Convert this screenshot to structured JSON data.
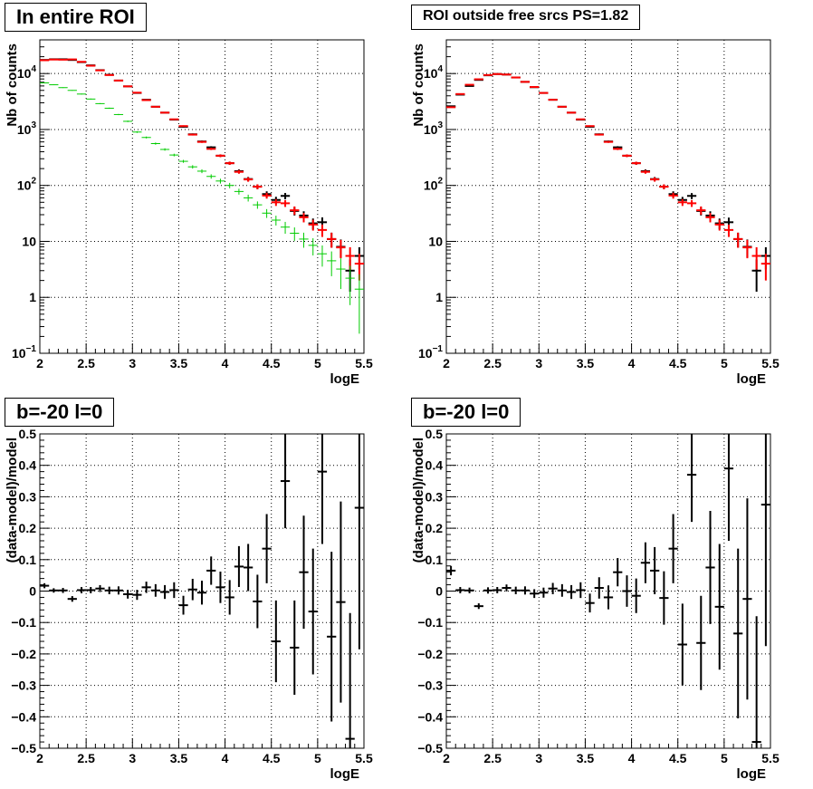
{
  "panels": [
    {
      "title": "In entire ROI",
      "title_style": "big"
    },
    {
      "title": "ROI outside free srcs PS=1.82",
      "title_style": "small"
    },
    {
      "title": "b=-20 l=0",
      "title_style": "big"
    },
    {
      "title": "b=-20 l=0",
      "title_style": "big"
    }
  ],
  "chart_data": [
    {
      "type": "scatter",
      "xlabel": "logE",
      "ylabel": "Nb of counts",
      "xlim": [
        2,
        5.5
      ],
      "ylim": [
        0.1,
        40000
      ],
      "yscale": "log",
      "grid": true,
      "x_ticks": [
        "2",
        "2.5",
        "3",
        "3.5",
        "4",
        "4.5",
        "5",
        "5.5"
      ],
      "y_ticks": [
        "10^-1",
        "1",
        "10",
        "10^2",
        "10^3",
        "10^4"
      ],
      "colors": {
        "data": "#000000",
        "model": "#ff0000",
        "component_blue": "#0000ff",
        "component_green": "#00cc00"
      },
      "series": [
        {
          "role": "data",
          "color": "#000000",
          "x": [
            2.05,
            2.15,
            2.25,
            2.35,
            2.45,
            2.55,
            2.65,
            2.75,
            2.85,
            2.95,
            3.05,
            3.15,
            3.25,
            3.35,
            3.45,
            3.55,
            3.65,
            3.75,
            3.85,
            3.95,
            4.05,
            4.15,
            4.25,
            4.35,
            4.45,
            4.55,
            4.65,
            4.75,
            4.85,
            4.95,
            5.05,
            5.15,
            5.25,
            5.35,
            5.45
          ],
          "y": [
            17500,
            18000,
            18000,
            17500,
            16000,
            14000,
            11500,
            9500,
            7500,
            5900,
            4500,
            3400,
            2550,
            2000,
            1500,
            1120,
            820,
            610,
            480,
            340,
            250,
            180,
            130,
            95,
            70,
            55,
            65,
            35,
            29,
            21,
            22,
            11,
            8,
            3,
            5.5
          ],
          "err_rel": [
            0.01,
            0.01,
            0.01,
            0.01,
            0.01,
            0.01,
            0.01,
            0.01,
            0.01,
            0.01,
            0.015,
            0.015,
            0.02,
            0.02,
            0.025,
            0.03,
            0.035,
            0.04,
            0.045,
            0.055,
            0.065,
            0.075,
            0.09,
            0.1,
            0.12,
            0.14,
            0.13,
            0.17,
            0.19,
            0.22,
            0.22,
            0.3,
            0.35,
            0.58,
            0.43
          ]
        },
        {
          "role": "model",
          "color": "#ff0000",
          "x": [
            2.05,
            2.15,
            2.25,
            2.35,
            2.45,
            2.55,
            2.65,
            2.75,
            2.85,
            2.95,
            3.05,
            3.15,
            3.25,
            3.35,
            3.45,
            3.55,
            3.65,
            3.75,
            3.85,
            3.95,
            4.05,
            4.15,
            4.25,
            4.35,
            4.45,
            4.55,
            4.65,
            4.75,
            4.85,
            4.95,
            5.05,
            5.15,
            5.25,
            5.35,
            5.45
          ],
          "y": [
            17300,
            17800,
            17700,
            17900,
            16200,
            13800,
            11400,
            9400,
            7500,
            5900,
            4550,
            3350,
            2550,
            2000,
            1520,
            1150,
            810,
            600,
            450,
            340,
            250,
            175,
            128,
            95,
            66,
            50,
            48,
            36,
            27,
            20,
            16,
            11,
            7.8,
            5.5,
            4
          ],
          "err_rel": [
            0.01,
            0.01,
            0.01,
            0.01,
            0.01,
            0.01,
            0.01,
            0.01,
            0.01,
            0.01,
            0.015,
            0.015,
            0.02,
            0.02,
            0.025,
            0.03,
            0.035,
            0.04,
            0.045,
            0.055,
            0.065,
            0.075,
            0.09,
            0.1,
            0.12,
            0.14,
            0.14,
            0.17,
            0.19,
            0.22,
            0.25,
            0.3,
            0.36,
            0.43,
            0.5
          ]
        },
        {
          "role": "component_green",
          "color": "#00cc00",
          "x": [
            2.05,
            2.15,
            2.25,
            2.35,
            2.45,
            2.55,
            2.65,
            2.75,
            2.85,
            2.95,
            3.05,
            3.15,
            3.25,
            3.35,
            3.45,
            3.55,
            3.65,
            3.75,
            3.85,
            3.95,
            4.05,
            4.15,
            4.25,
            4.35,
            4.45,
            4.55,
            4.65,
            4.75,
            4.85,
            4.95,
            5.05,
            5.15,
            5.25,
            5.35,
            5.45
          ],
          "y": [
            6800,
            6300,
            5600,
            5000,
            4300,
            3500,
            2900,
            2400,
            1850,
            1400,
            900,
            720,
            560,
            440,
            350,
            270,
            215,
            180,
            145,
            120,
            100,
            78,
            60,
            45,
            32,
            24,
            18,
            14,
            11,
            8.5,
            6,
            4.5,
            3.2,
            2.2,
            1.4
          ],
          "err_rel": [
            0.015,
            0.015,
            0.015,
            0.015,
            0.02,
            0.02,
            0.02,
            0.025,
            0.025,
            0.03,
            0.035,
            0.04,
            0.045,
            0.05,
            0.055,
            0.06,
            0.07,
            0.08,
            0.09,
            0.1,
            0.11,
            0.12,
            0.14,
            0.15,
            0.18,
            0.2,
            0.24,
            0.27,
            0.3,
            0.34,
            0.41,
            0.47,
            0.56,
            0.67,
            0.84
          ]
        }
      ]
    },
    {
      "type": "scatter",
      "xlabel": "logE",
      "ylabel": "Nb of counts",
      "xlim": [
        2,
        5.5
      ],
      "ylim": [
        0.1,
        40000
      ],
      "yscale": "log",
      "grid": true,
      "x_ticks": [
        "2",
        "2.5",
        "3",
        "3.5",
        "4",
        "4.5",
        "5",
        "5.5"
      ],
      "y_ticks": [
        "10^-1",
        "1",
        "10",
        "10^2",
        "10^3",
        "10^4"
      ],
      "series": [
        {
          "role": "data",
          "color": "#000000",
          "x": [
            2.05,
            2.15,
            2.25,
            2.35,
            2.45,
            2.55,
            2.65,
            2.75,
            2.85,
            2.95,
            3.05,
            3.15,
            3.25,
            3.35,
            3.45,
            3.55,
            3.65,
            3.75,
            3.85,
            3.95,
            4.05,
            4.15,
            4.25,
            4.35,
            4.45,
            4.55,
            4.65,
            4.75,
            4.85,
            4.95,
            5.05,
            5.15,
            5.25,
            5.35,
            5.45
          ],
          "y": [
            2600,
            4200,
            6000,
            7700,
            9300,
            9800,
            9600,
            8500,
            7100,
            5700,
            4500,
            3400,
            2550,
            2000,
            1500,
            1120,
            820,
            610,
            480,
            340,
            250,
            180,
            130,
            95,
            70,
            55,
            65,
            35,
            29,
            21,
            22,
            11,
            8,
            3,
            5.5
          ],
          "err_rel": [
            0.02,
            0.016,
            0.013,
            0.012,
            0.011,
            0.01,
            0.011,
            0.011,
            0.012,
            0.014,
            0.015,
            0.017,
            0.02,
            0.022,
            0.026,
            0.03,
            0.035,
            0.04,
            0.046,
            0.054,
            0.063,
            0.075,
            0.088,
            0.1,
            0.12,
            0.135,
            0.124,
            0.17,
            0.19,
            0.22,
            0.21,
            0.3,
            0.35,
            0.58,
            0.43
          ]
        },
        {
          "role": "model",
          "color": "#ff0000",
          "x": [
            2.05,
            2.15,
            2.25,
            2.35,
            2.45,
            2.55,
            2.65,
            2.75,
            2.85,
            2.95,
            3.05,
            3.15,
            3.25,
            3.35,
            3.45,
            3.55,
            3.65,
            3.75,
            3.85,
            3.95,
            4.05,
            4.15,
            4.25,
            4.35,
            4.45,
            4.55,
            4.65,
            4.75,
            4.85,
            4.95,
            5.05,
            5.15,
            5.25,
            5.35,
            5.45
          ],
          "y": [
            2500,
            4300,
            6300,
            7900,
            9400,
            9800,
            9600,
            8500,
            7100,
            5750,
            4500,
            3400,
            2550,
            2000,
            1520,
            1150,
            810,
            600,
            450,
            340,
            250,
            175,
            128,
            95,
            66,
            50,
            48,
            36,
            27,
            20,
            16,
            11,
            7.8,
            5.5,
            4
          ],
          "err_rel": [
            0.02,
            0.016,
            0.013,
            0.012,
            0.011,
            0.01,
            0.011,
            0.011,
            0.012,
            0.014,
            0.015,
            0.017,
            0.02,
            0.022,
            0.026,
            0.03,
            0.035,
            0.04,
            0.046,
            0.054,
            0.063,
            0.075,
            0.088,
            0.1,
            0.12,
            0.14,
            0.14,
            0.17,
            0.19,
            0.22,
            0.25,
            0.3,
            0.36,
            0.43,
            0.5
          ]
        }
      ]
    },
    {
      "type": "scatter",
      "xlabel": "logE",
      "ylabel": "(data-model)/model",
      "xlim": [
        2,
        5.5
      ],
      "ylim": [
        -0.5,
        0.5
      ],
      "grid": true,
      "x_ticks": [
        "2",
        "2.5",
        "3",
        "3.5",
        "4",
        "4.5",
        "5",
        "5.5"
      ],
      "y_ticks": [
        "-0.5",
        "-0.4",
        "-0.3",
        "-0.2",
        "-0.1",
        "0",
        "0.1",
        "0.2",
        "0.3",
        "0.4",
        "0.5"
      ],
      "series": [
        {
          "role": "residual",
          "color": "#000000",
          "x": [
            2.05,
            2.15,
            2.25,
            2.35,
            2.45,
            2.55,
            2.65,
            2.75,
            2.85,
            2.95,
            3.05,
            3.15,
            3.25,
            3.35,
            3.45,
            3.55,
            3.65,
            3.75,
            3.85,
            3.95,
            4.05,
            4.15,
            4.25,
            4.35,
            4.45,
            4.55,
            4.65,
            4.75,
            4.85,
            4.95,
            5.05,
            5.15,
            5.25,
            5.35,
            5.45
          ],
          "y": [
            0.017,
            0.002,
            0.002,
            -0.025,
            0.003,
            0.003,
            0.008,
            0.002,
            0.002,
            -0.01,
            -0.012,
            0.012,
            0.002,
            -0.003,
            0.003,
            -0.045,
            0.005,
            -0.005,
            0.065,
            0.012,
            -0.02,
            0.078,
            0.075,
            -0.033,
            0.135,
            -0.16,
            0.35,
            -0.18,
            0.06,
            -0.065,
            0.38,
            -0.145,
            -0.035,
            -0.47,
            0.265
          ],
          "err": [
            0.008,
            0.007,
            0.008,
            0.009,
            0.01,
            0.01,
            0.011,
            0.012,
            0.013,
            0.014,
            0.016,
            0.018,
            0.02,
            0.022,
            0.025,
            0.03,
            0.034,
            0.038,
            0.045,
            0.05,
            0.055,
            0.065,
            0.075,
            0.085,
            0.11,
            0.13,
            0.15,
            0.15,
            0.18,
            0.2,
            0.23,
            0.27,
            0.32,
            0.4,
            0.45
          ]
        }
      ]
    },
    {
      "type": "scatter",
      "xlabel": "logE",
      "ylabel": "(data-model)/model",
      "xlim": [
        2,
        5.5
      ],
      "ylim": [
        -0.5,
        0.5
      ],
      "grid": true,
      "x_ticks": [
        "2",
        "2.5",
        "3",
        "3.5",
        "4",
        "4.5",
        "5",
        "5.5"
      ],
      "y_ticks": [
        "-0.5",
        "-0.4",
        "-0.3",
        "-0.2",
        "-0.1",
        "0",
        "0.1",
        "0.2",
        "0.3",
        "0.4",
        "0.5"
      ],
      "series": [
        {
          "role": "residual",
          "color": "#000000",
          "x": [
            2.05,
            2.15,
            2.25,
            2.35,
            2.45,
            2.55,
            2.65,
            2.75,
            2.85,
            2.95,
            3.05,
            3.15,
            3.25,
            3.35,
            3.45,
            3.55,
            3.65,
            3.75,
            3.85,
            3.95,
            4.05,
            4.15,
            4.25,
            4.35,
            4.45,
            4.55,
            4.65,
            4.75,
            4.85,
            4.95,
            5.05,
            5.15,
            5.25,
            5.35,
            5.45
          ],
          "y": [
            0.065,
            0.003,
            0.002,
            -0.048,
            0.002,
            0.003,
            0.01,
            0.002,
            0.002,
            -0.008,
            -0.005,
            0.008,
            0.002,
            -0.003,
            0.003,
            -0.038,
            0.01,
            -0.02,
            0.06,
            0.0,
            -0.015,
            0.09,
            0.065,
            -0.022,
            0.135,
            -0.17,
            0.37,
            -0.165,
            0.075,
            -0.05,
            0.39,
            -0.135,
            -0.025,
            -0.48,
            0.275
          ],
          "err": [
            0.015,
            0.01,
            0.009,
            0.009,
            0.01,
            0.01,
            0.011,
            0.012,
            0.013,
            0.014,
            0.016,
            0.018,
            0.02,
            0.022,
            0.025,
            0.03,
            0.034,
            0.038,
            0.045,
            0.05,
            0.055,
            0.065,
            0.075,
            0.085,
            0.11,
            0.13,
            0.15,
            0.15,
            0.18,
            0.2,
            0.23,
            0.27,
            0.32,
            0.4,
            0.45
          ]
        }
      ]
    }
  ]
}
